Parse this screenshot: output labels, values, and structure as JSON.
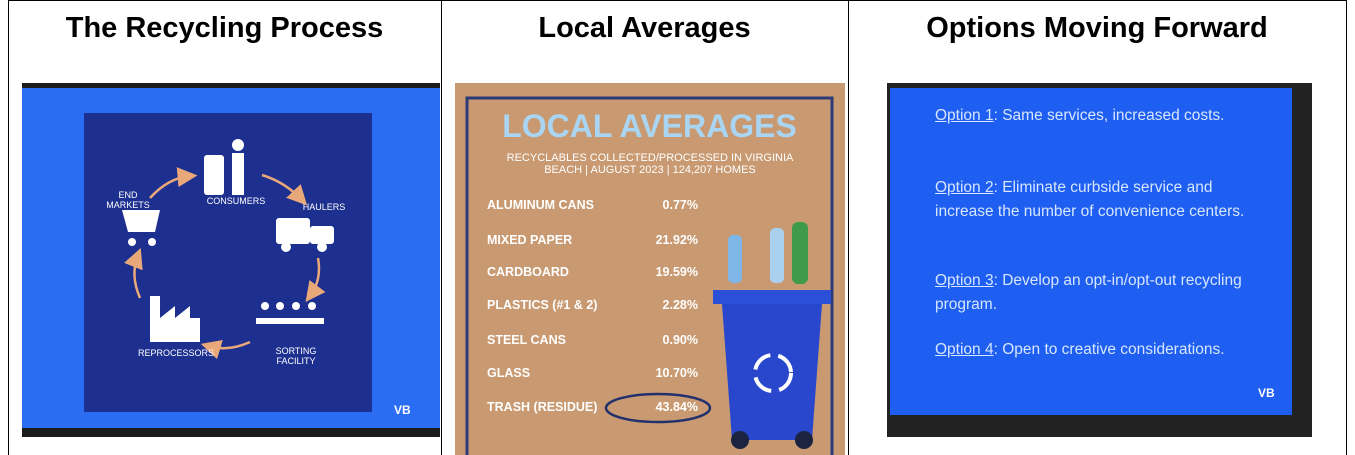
{
  "header_cells": [
    "The Recycling Process",
    "Local Averages",
    "Options Moving Forward"
  ],
  "slide_1": {
    "labels": [
      "CONSUMERS",
      "HAULERS",
      "SORTING FACILITY",
      "REPROCESSORS",
      "END MARKETS"
    ],
    "logo": "VB"
  },
  "slide_2": {
    "title": "LOCAL AVERAGES",
    "subtitle": "RECYCLABLES COLLECTED/PROCESSED IN VIRGINIA BEACH | AUGUST 2023 | 124,207 HOMES",
    "rows": [
      [
        "ALUMINUM CANS",
        "0.77%"
      ],
      [
        "MIXED PAPER",
        "21.92%"
      ],
      [
        "CARDBOARD",
        "19.59%"
      ],
      [
        "PLASTICS (#1 & 2)",
        "2.28%"
      ],
      [
        "STEEL CANS",
        "0.90%"
      ],
      [
        "GLASS",
        "10.70%"
      ],
      [
        "TRASH (RESIDUE)",
        "43.84%"
      ]
    ]
  },
  "slide_3": {
    "options": [
      {
        "label": "Option 1",
        "text": ":  Same services, increased costs."
      },
      {
        "label": "Option 2",
        "text": ":  Eliminate curbside service and increase the number of convenience centers."
      },
      {
        "label": "Option 3",
        "text": ":  Develop an opt-in/opt-out recycling program."
      },
      {
        "label": "Option 4",
        "text": ":  Open to creative considerations."
      }
    ],
    "logo": "VB"
  }
}
